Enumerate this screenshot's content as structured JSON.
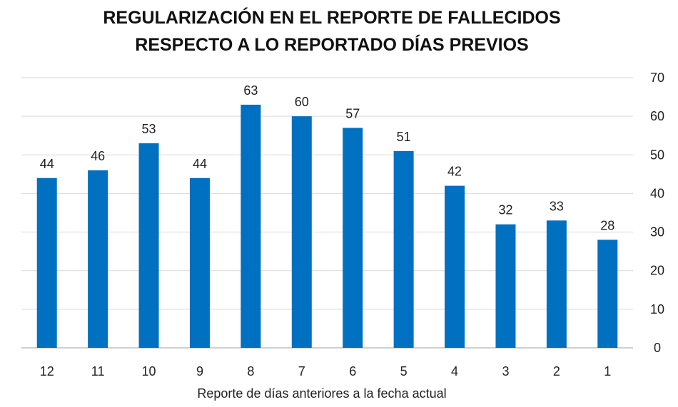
{
  "chart_data": {
    "type": "bar",
    "title_lines": [
      "REGULARIZACIÓN EN EL REPORTE DE FALLECIDOS",
      "RESPECTO A LO REPORTADO DÍAS PREVIOS"
    ],
    "xlabel": "Reporte de días anteriores a la fecha actual",
    "ylabel": "",
    "categories": [
      "12",
      "11",
      "10",
      "9",
      "8",
      "7",
      "6",
      "5",
      "4",
      "3",
      "2",
      "1"
    ],
    "values": [
      44,
      46,
      53,
      44,
      63,
      60,
      57,
      51,
      42,
      32,
      33,
      28
    ],
    "ylim": [
      0,
      70
    ],
    "yticks": [
      0,
      10,
      20,
      30,
      40,
      50,
      60,
      70
    ],
    "y_axis_side": "right",
    "grid": true,
    "legend": "none",
    "bar_color": "#0070C0",
    "grid_color": "#D9D9D9",
    "data_labels": true
  }
}
